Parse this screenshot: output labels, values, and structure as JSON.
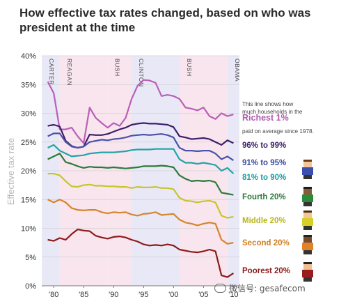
{
  "title_line1": "How effective tax rates changed, based on who was",
  "title_line2": "president at the time",
  "watermark_text": "微信号: gesafecom",
  "note": {
    "line1": "This line shows how",
    "line2": "much households in the",
    "line3": "paid on average since 1978."
  },
  "chart_data": {
    "type": "line",
    "title": "How effective tax rates changed, based on who was president at the time",
    "ylabel": "Effective tax rate",
    "xlabel": "",
    "ylim": [
      0,
      40
    ],
    "xlim": [
      1978,
      2011
    ],
    "yticks": [
      "0%",
      "5%",
      "10%",
      "15%",
      "20%",
      "25%",
      "30%",
      "35%",
      "40%"
    ],
    "xticks": [
      {
        "label": "'80",
        "value": 1980
      },
      {
        "label": "'85",
        "value": 1985
      },
      {
        "label": "'90",
        "value": 1990
      },
      {
        "label": "'95",
        "value": 1995
      },
      {
        "label": "'00",
        "value": 2000
      },
      {
        "label": "'05",
        "value": 2005
      },
      {
        "label": "'10",
        "value": 2010
      }
    ],
    "presidents": [
      {
        "name": "CARTER",
        "start": 1978,
        "end": 1981,
        "party": "D"
      },
      {
        "name": "REAGAN",
        "start": 1981,
        "end": 1989,
        "party": "R"
      },
      {
        "name": "BUSH",
        "start": 1989,
        "end": 1993,
        "party": "R"
      },
      {
        "name": "CLINTON",
        "start": 1993,
        "end": 2001,
        "party": "D"
      },
      {
        "name": "BUSH",
        "start": 2001,
        "end": 2009,
        "party": "R"
      },
      {
        "name": "OBAMA",
        "start": 2009,
        "end": 2011,
        "party": "D"
      }
    ],
    "shade_colors": {
      "D": "#e9e8f6",
      "R": "#f8e5ee"
    },
    "x": [
      1979,
      1980,
      1981,
      1982,
      1983,
      1984,
      1985,
      1986,
      1987,
      1988,
      1989,
      1990,
      1991,
      1992,
      1993,
      1994,
      1995,
      1996,
      1997,
      1998,
      1999,
      2000,
      2001,
      2002,
      2003,
      2004,
      2005,
      2006,
      2007,
      2008,
      2009,
      2010
    ],
    "series": [
      {
        "name": "Richest 1%",
        "color": "#b95fb6",
        "label_color": "#b05bb0",
        "values": [
          35.5,
          33.5,
          27.2,
          27.2,
          27.5,
          26,
          24.8,
          31,
          29.2,
          28.3,
          27.5,
          28.3,
          27.8,
          29.2,
          32.5,
          34.8,
          35.8,
          35.7,
          35.3,
          33,
          33.2,
          33,
          32.5,
          31,
          30.8,
          30.5,
          31,
          29.5,
          29,
          30,
          29.5,
          29.8
        ]
      },
      {
        "name": "96% to 99%",
        "color": "#3e1f6b",
        "label_color": "#3e1f6b",
        "values": [
          27.8,
          28,
          27.7,
          25.2,
          24.3,
          24,
          24.2,
          26.3,
          26.2,
          26.2,
          26.4,
          26.8,
          27.2,
          27.5,
          28,
          28.2,
          28.3,
          28.2,
          28.2,
          28.1,
          28,
          27.6,
          26,
          25.8,
          25.5,
          25.6,
          25.7,
          25.5,
          25,
          24.5,
          25.3,
          24.8
        ]
      },
      {
        "name": "91% to 95%",
        "color": "#4a52a8",
        "label_color": "#3a4aa0",
        "values": [
          26,
          26.5,
          26.5,
          25,
          24.2,
          24,
          24.2,
          25,
          25.2,
          25.4,
          25.3,
          25.5,
          25.6,
          25.8,
          26.1,
          26.2,
          26.3,
          26.2,
          26.3,
          26.4,
          26.2,
          25.8,
          24,
          23.5,
          23.5,
          23.4,
          23.5,
          23.5,
          23,
          22,
          22.5,
          21.8
        ]
      },
      {
        "name": "81% to 90%",
        "color": "#23a4a6",
        "label_color": "#1d9ea0",
        "values": [
          24,
          24.5,
          23.5,
          23,
          22.5,
          22.6,
          22.7,
          23,
          23.1,
          23.2,
          23.2,
          23.2,
          23.3,
          23.4,
          23.6,
          23.7,
          23.7,
          23.7,
          23.8,
          23.8,
          23.8,
          23.8,
          22,
          21.4,
          21.4,
          21.2,
          21.4,
          21.2,
          21,
          20,
          20.5,
          19.5
        ]
      },
      {
        "name": "Fourth 20%",
        "color": "#2c7a3a",
        "label_color": "#2c7a3a",
        "values": [
          22,
          22.5,
          23,
          21.5,
          21.2,
          20.8,
          20.5,
          20.7,
          20.6,
          20.6,
          20.5,
          20.6,
          20.5,
          20.4,
          20.5,
          20.6,
          20.8,
          20.8,
          20.8,
          20.9,
          20.8,
          20.6,
          19.2,
          18.6,
          18.2,
          18.3,
          18.2,
          18.3,
          18,
          16.2,
          16,
          15.8
        ]
      },
      {
        "name": "Middle 20%",
        "color": "#c7c52c",
        "label_color": "#b7b51a",
        "values": [
          19.5,
          19.5,
          19.2,
          18.2,
          17.3,
          17.2,
          17.5,
          17.6,
          17.4,
          17.4,
          17.3,
          17.3,
          17.2,
          17.2,
          17,
          17.2,
          17.1,
          17.1,
          17.2,
          17,
          17,
          16.8,
          15.3,
          14.8,
          14.7,
          14.5,
          14.7,
          14.8,
          14.5,
          12.2,
          11.8,
          12
        ]
      },
      {
        "name": "Second 20%",
        "color": "#d6842a",
        "label_color": "#cf7f22",
        "values": [
          15,
          14.5,
          15,
          14.5,
          13.5,
          13.2,
          13.1,
          13.2,
          13.2,
          12.8,
          12.6,
          12.8,
          12.7,
          12.8,
          12.4,
          12.2,
          12.5,
          12.6,
          12.8,
          12.3,
          12.4,
          12.5,
          11.5,
          11,
          10.8,
          10.5,
          10.8,
          11,
          10.8,
          8,
          7.3,
          7.5
        ]
      },
      {
        "name": "Poorest 20%",
        "color": "#8c1a1a",
        "label_color": "#8c1a1a",
        "values": [
          8,
          7.8,
          8.3,
          8,
          9,
          9.8,
          9.6,
          9.5,
          8.7,
          8.4,
          8.2,
          8.5,
          8.6,
          8.4,
          8,
          7.7,
          7.2,
          7,
          7.1,
          7,
          7.2,
          7,
          6.3,
          6.1,
          5.9,
          5.8,
          6,
          6.3,
          6,
          1.8,
          1.5,
          2.2
        ]
      }
    ]
  }
}
